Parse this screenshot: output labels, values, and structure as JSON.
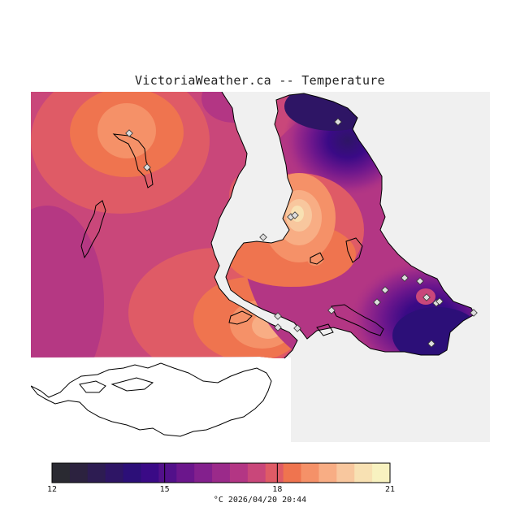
{
  "title": "VictoriaWeather.ca -- Temperature",
  "caption": "°C  2026/04/20 20:44",
  "colorbar": {
    "min": 12,
    "max": 21,
    "tick_labels": [
      "12",
      "15",
      "18",
      "21"
    ],
    "tick_values": [
      12,
      15,
      18,
      21
    ],
    "colors": [
      "#2a2a32",
      "#2c223f",
      "#2d1c52",
      "#2e1565",
      "#2c0f78",
      "#3a0a86",
      "#52108a",
      "#6b168c",
      "#83208d",
      "#9b2a8a",
      "#b33684",
      "#c9477a",
      "#df5b66",
      "#ef744f",
      "#f59168",
      "#f8ad84",
      "#f8c79e",
      "#f8e1b3",
      "#f8f2c0"
    ]
  },
  "map": {
    "background_color": "#f0f0f0",
    "station_markers": 22
  }
}
